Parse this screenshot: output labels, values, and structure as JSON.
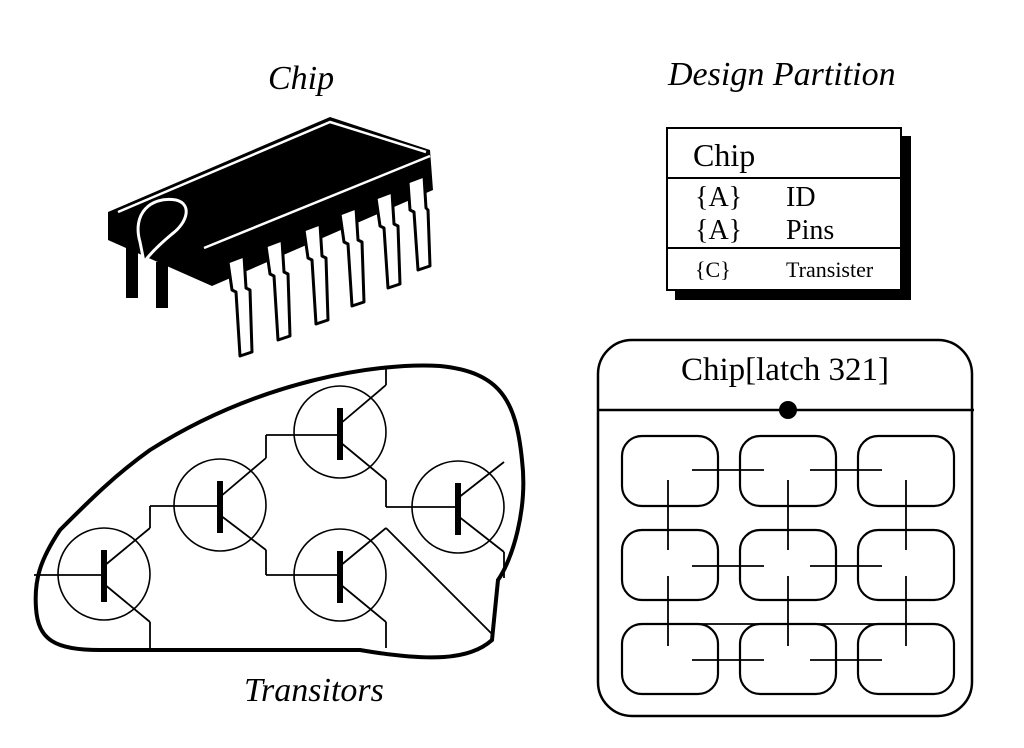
{
  "captions": {
    "chip": "Chip",
    "design_partition": "Design Partition",
    "transistors": "Transitors"
  },
  "class_box": {
    "title": "Chip",
    "attributes": [
      {
        "tag": "{A}",
        "name": "ID"
      },
      {
        "tag": "{A}",
        "name": "Pins"
      }
    ],
    "operations": [
      {
        "tag": "{C}",
        "name": "Transister"
      }
    ]
  },
  "state_box": {
    "title": "Chip[latch 321]"
  },
  "colors": {
    "ink": "#000000",
    "background": "#ffffff"
  }
}
